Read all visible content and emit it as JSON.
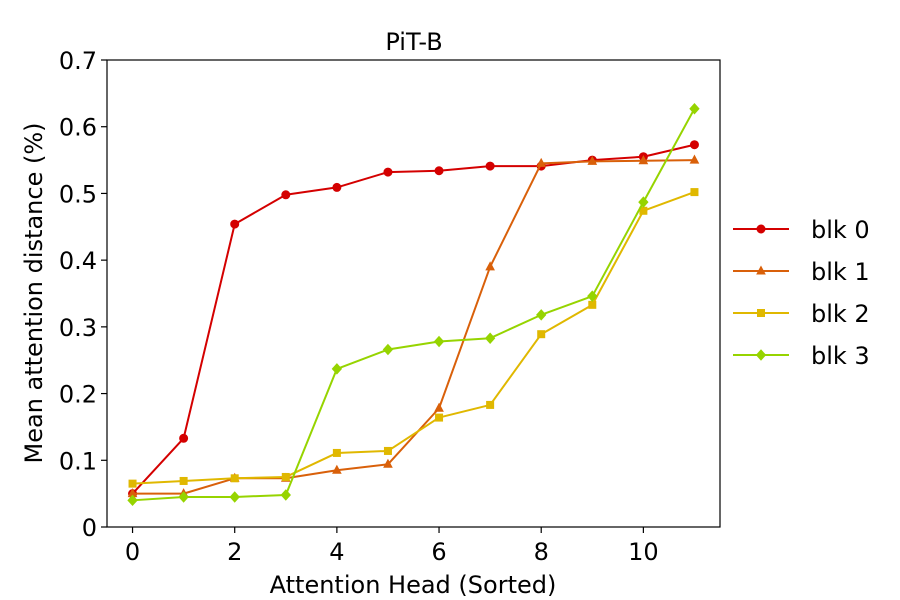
{
  "chart_data": {
    "type": "line",
    "title": "PiT-B",
    "xlabel": "Attention Head (Sorted)",
    "ylabel": "Mean attention distance (%)",
    "x": [
      0,
      1,
      2,
      3,
      4,
      5,
      6,
      7,
      8,
      9,
      10,
      11
    ],
    "xlim": [
      -0.5,
      11.5
    ],
    "ylim": [
      0,
      0.7
    ],
    "xticks": [
      0,
      2,
      4,
      6,
      8,
      10
    ],
    "xtick_labels": [
      "0",
      "2",
      "4",
      "6",
      "8",
      "10"
    ],
    "yticks": [
      0,
      0.1,
      0.2,
      0.3,
      0.4,
      0.5,
      0.6,
      0.7
    ],
    "ytick_labels": [
      "0",
      "0.1",
      "0.2",
      "0.3",
      "0.4",
      "0.5",
      "0.6",
      "0.7"
    ],
    "grid": false,
    "legend_position": "right",
    "series": [
      {
        "name": "blk 0",
        "color": "#d40000",
        "marker": "circle",
        "values": [
          0.05,
          0.133,
          0.454,
          0.498,
          0.509,
          0.532,
          0.534,
          0.541,
          0.541,
          0.55,
          0.555,
          0.573
        ]
      },
      {
        "name": "blk 1",
        "color": "#d9600a",
        "marker": "triangle",
        "values": [
          0.05,
          0.05,
          0.073,
          0.073,
          0.085,
          0.094,
          0.178,
          0.39,
          0.545,
          0.548,
          0.549,
          0.55
        ]
      },
      {
        "name": "blk 2",
        "color": "#e0b800",
        "marker": "square",
        "values": [
          0.065,
          0.069,
          0.073,
          0.075,
          0.111,
          0.114,
          0.164,
          0.183,
          0.289,
          0.333,
          0.474,
          0.502
        ]
      },
      {
        "name": "blk 3",
        "color": "#96d400",
        "marker": "diamond",
        "values": [
          0.04,
          0.045,
          0.045,
          0.048,
          0.237,
          0.266,
          0.278,
          0.283,
          0.318,
          0.346,
          0.487,
          0.627
        ]
      }
    ]
  }
}
